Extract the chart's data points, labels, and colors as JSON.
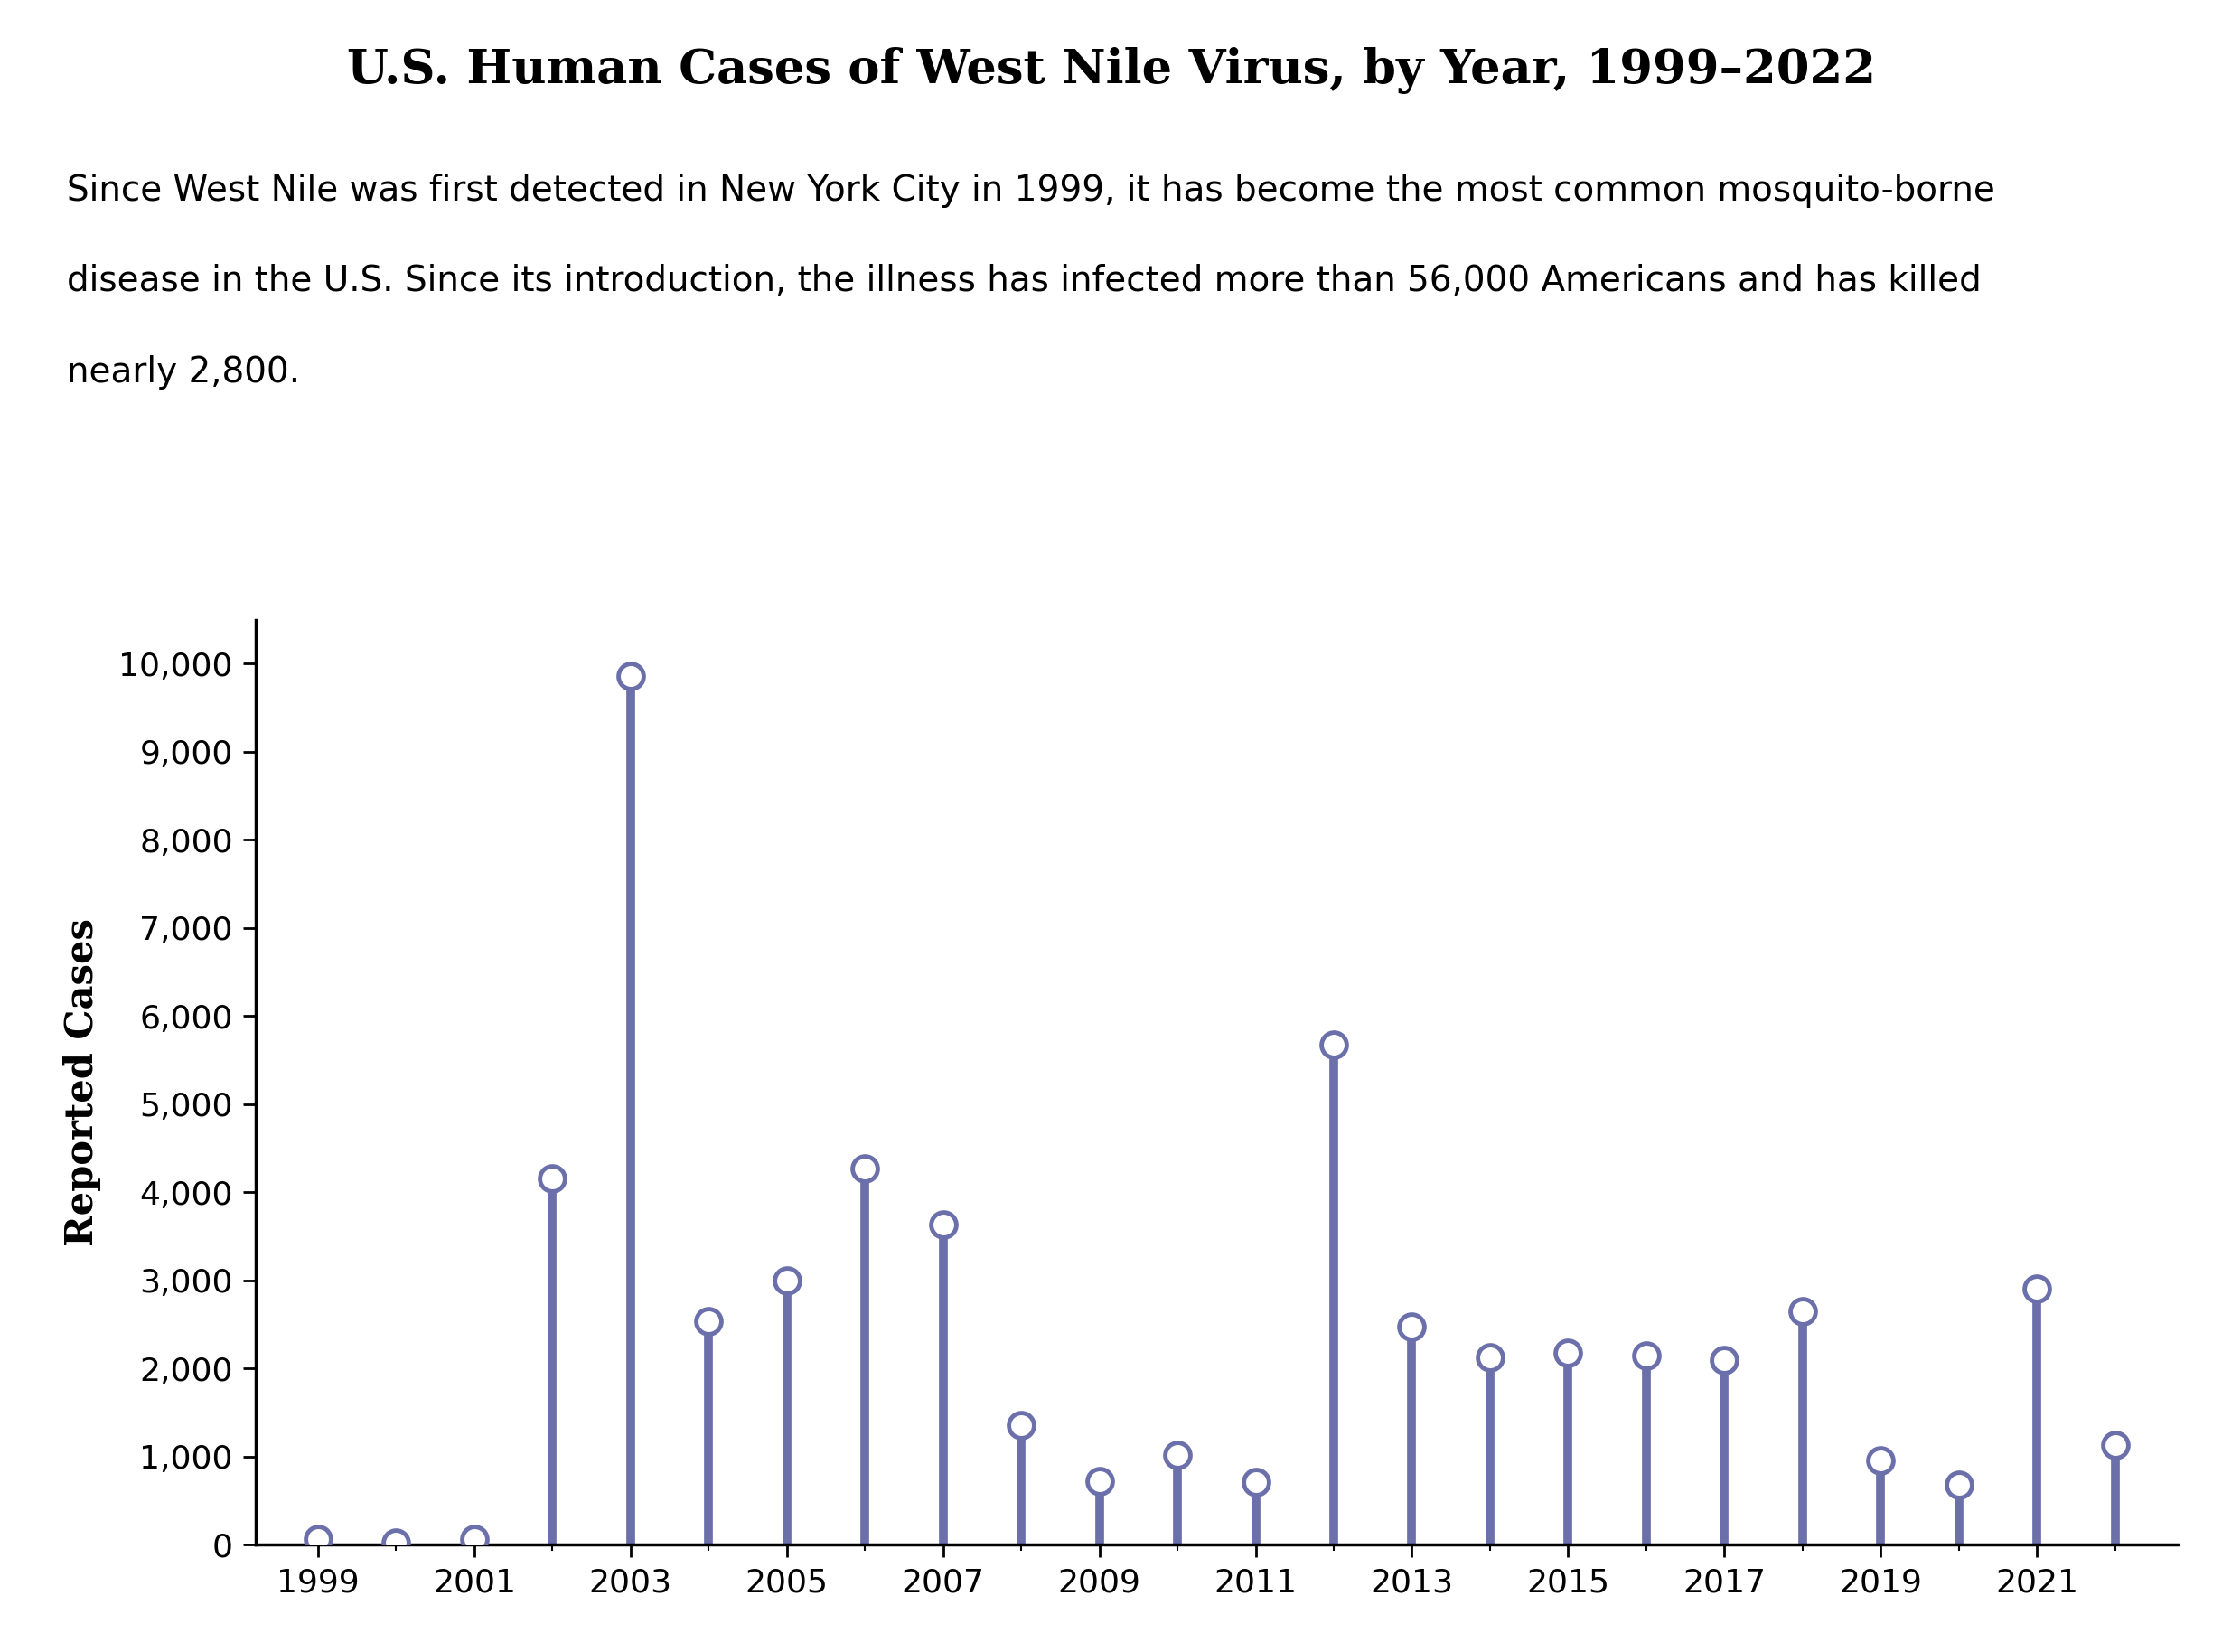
{
  "title": "U.S. Human Cases of West Nile Virus, by Year, 1999–2022",
  "subtitle_line1": "Since West Nile was first detected in New York City in 1999, it has become the most common mosquito-borne",
  "subtitle_line2": "disease in the U.S. Since its introduction, the illness has infected more than 56,000 Americans and has killed",
  "subtitle_line3": "nearly 2,800.",
  "ylabel": "Reported Cases",
  "years": [
    1999,
    2000,
    2001,
    2002,
    2003,
    2004,
    2005,
    2006,
    2007,
    2008,
    2009,
    2010,
    2011,
    2012,
    2013,
    2014,
    2015,
    2016,
    2017,
    2018,
    2019,
    2020,
    2021,
    2022
  ],
  "values": [
    62,
    21,
    66,
    4156,
    9862,
    2539,
    3000,
    4269,
    3630,
    1356,
    720,
    1021,
    712,
    5674,
    2469,
    2122,
    2175,
    2149,
    2097,
    2647,
    958,
    678,
    2900,
    1126
  ],
  "bar_color": "#6b6faa",
  "background_color": "#ffffff",
  "title_background": "#dcdcdc",
  "ylim": [
    0,
    10500
  ],
  "yticks": [
    0,
    1000,
    2000,
    3000,
    4000,
    5000,
    6000,
    7000,
    8000,
    9000,
    10000
  ],
  "xtick_labels": [
    "1999",
    "2001",
    "2003",
    "2005",
    "2007",
    "2009",
    "2011",
    "2013",
    "2015",
    "2017",
    "2019",
    "2021"
  ],
  "xtick_positions": [
    1999,
    2001,
    2003,
    2005,
    2007,
    2009,
    2011,
    2013,
    2015,
    2017,
    2019,
    2021
  ],
  "title_fontsize": 38,
  "subtitle_fontsize": 28,
  "tick_fontsize": 26,
  "ylabel_fontsize": 30
}
